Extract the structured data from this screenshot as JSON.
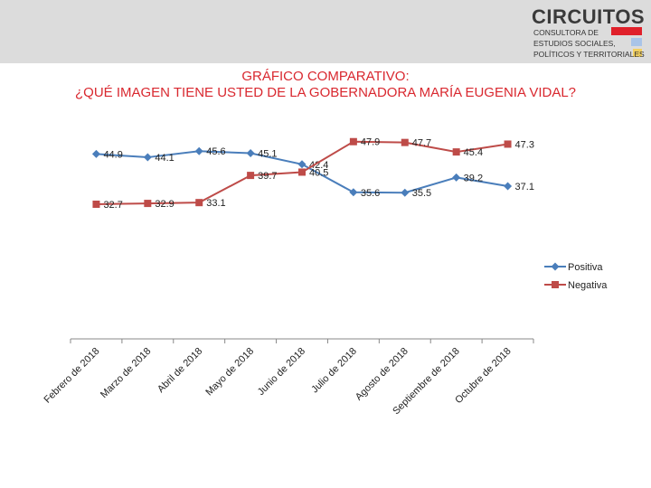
{
  "brand": {
    "name": "CIRCUITOS",
    "line1": "CONSULTORA DE",
    "line2": "ESTUDIOS SOCIALES,",
    "line3": "POLÍTICOS Y TERRITORIALES",
    "colors": [
      "#e0202a",
      "#a9c4e8",
      "#f2d060"
    ]
  },
  "title_line1": "GRÁFICO COMPARATIVO:",
  "title_line2": "¿QUÉ IMAGEN TIENE USTED DE LA GOBERNADORA MARÍA EUGENIA VIDAL?",
  "chart_data": {
    "type": "line",
    "title": "GRÁFICO COMPARATIVO: ¿QUÉ IMAGEN TIENE USTED DE LA GOBERNADORA MARÍA EUGENIA VIDAL?",
    "categories": [
      "Febrero de 2018",
      "Marzo de 2018",
      "Abril de 2018",
      "Mayo de 2018",
      "Junio de 2018",
      "Julio de 2018",
      "Agosto de 2018",
      "Septiembre de 2018",
      "Octubre de 2018"
    ],
    "series": [
      {
        "name": "Positiva",
        "color": "#4a7ebb",
        "marker": "diamond",
        "values": [
          44.9,
          44.1,
          45.6,
          45.1,
          42.4,
          35.6,
          35.5,
          39.2,
          37.1
        ]
      },
      {
        "name": "Negativa",
        "color": "#be4b48",
        "marker": "square",
        "values": [
          32.7,
          32.9,
          33.1,
          39.7,
          40.5,
          47.9,
          47.7,
          45.4,
          47.3
        ]
      }
    ],
    "ylim": [
      0,
      57.5
    ],
    "legend": "right",
    "grid": false,
    "data_labels": true
  }
}
